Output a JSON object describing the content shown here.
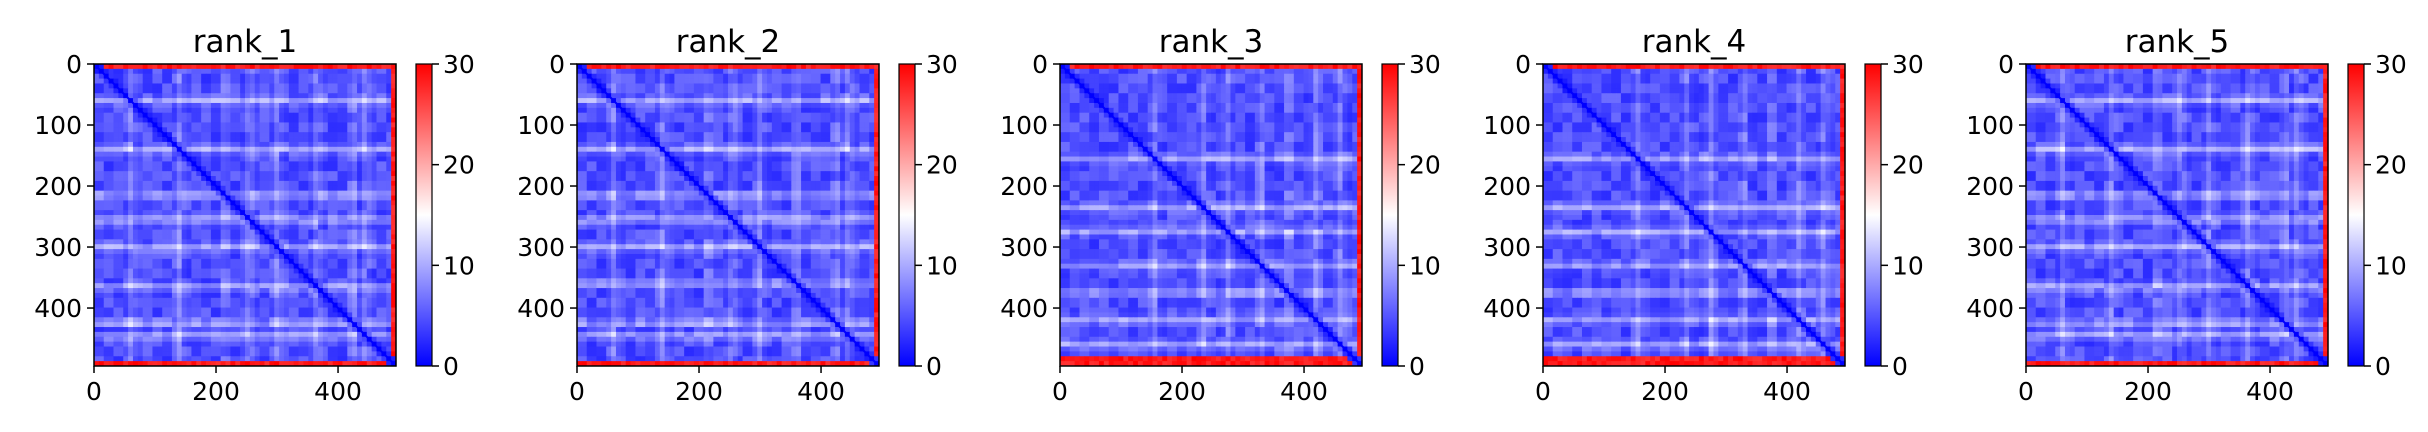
{
  "chart_data": [
    {
      "type": "heatmap",
      "title": "rank_1",
      "matrix_size": 495,
      "x_ticks": [
        0,
        200,
        400
      ],
      "y_ticks": [
        0,
        100,
        200,
        300,
        400
      ],
      "xlim": [
        0,
        495
      ],
      "ylim": [
        495,
        0
      ],
      "colorbar": {
        "range": [
          0,
          30
        ],
        "ticks": [
          0,
          10,
          20,
          30
        ],
        "colormap": "bwr",
        "low_color": "#0000ff",
        "mid_color": "#ffffff",
        "high_color": "#ff0000"
      },
      "pattern": {
        "low_diagonal": true,
        "high_value_edge_rows": [
          0,
          487
        ],
        "high_value_edge_col": 487,
        "bright_bands": [
          60,
          140,
          215,
          255,
          300,
          365,
          425,
          445
        ]
      }
    },
    {
      "type": "heatmap",
      "title": "rank_2",
      "matrix_size": 495,
      "x_ticks": [
        0,
        200,
        400
      ],
      "y_ticks": [
        0,
        100,
        200,
        300,
        400
      ],
      "xlim": [
        0,
        495
      ],
      "ylim": [
        495,
        0
      ],
      "colorbar": {
        "range": [
          0,
          30
        ],
        "ticks": [
          0,
          10,
          20,
          30
        ],
        "colormap": "bwr",
        "low_color": "#0000ff",
        "mid_color": "#ffffff",
        "high_color": "#ff0000"
      },
      "pattern": {
        "low_diagonal": true,
        "high_value_edge_rows": [
          0,
          487
        ],
        "high_value_edge_col": 487,
        "bright_bands": [
          60,
          140,
          215,
          255,
          300,
          360,
          425,
          445
        ]
      }
    },
    {
      "type": "heatmap",
      "title": "rank_3",
      "matrix_size": 495,
      "x_ticks": [
        0,
        200,
        400
      ],
      "y_ticks": [
        0,
        100,
        200,
        300,
        400
      ],
      "xlim": [
        0,
        495
      ],
      "ylim": [
        495,
        0
      ],
      "colorbar": {
        "range": [
          0,
          30
        ],
        "ticks": [
          0,
          10,
          20,
          30
        ],
        "colormap": "bwr",
        "low_color": "#0000ff",
        "mid_color": "#ffffff",
        "high_color": "#ff0000"
      },
      "pattern": {
        "low_diagonal": true,
        "high_value_edge_rows": [
          0,
          480
        ],
        "high_value_edge_col": 487,
        "bright_bands": [
          155,
          235,
          275,
          330,
          375,
          420,
          460
        ]
      }
    },
    {
      "type": "heatmap",
      "title": "rank_4",
      "matrix_size": 495,
      "x_ticks": [
        0,
        200,
        400
      ],
      "y_ticks": [
        0,
        100,
        200,
        300,
        400
      ],
      "xlim": [
        0,
        495
      ],
      "ylim": [
        495,
        0
      ],
      "colorbar": {
        "range": [
          0,
          30
        ],
        "ticks": [
          0,
          10,
          20,
          30
        ],
        "colormap": "bwr",
        "low_color": "#0000ff",
        "mid_color": "#ffffff",
        "high_color": "#ff0000"
      },
      "pattern": {
        "low_diagonal": true,
        "high_value_edge_rows": [
          0,
          480
        ],
        "high_value_edge_col": 487,
        "bright_bands": [
          155,
          235,
          275,
          330,
          375,
          420,
          460
        ]
      }
    },
    {
      "type": "heatmap",
      "title": "rank_5",
      "matrix_size": 495,
      "x_ticks": [
        0,
        200,
        400
      ],
      "y_ticks": [
        0,
        100,
        200,
        300,
        400
      ],
      "xlim": [
        0,
        495
      ],
      "ylim": [
        495,
        0
      ],
      "colorbar": {
        "range": [
          0,
          30
        ],
        "ticks": [
          0,
          10,
          20,
          30
        ],
        "colormap": "bwr",
        "low_color": "#0000ff",
        "mid_color": "#ffffff",
        "high_color": "#ff0000"
      },
      "pattern": {
        "low_diagonal": true,
        "high_value_edge_rows": [
          0,
          487
        ],
        "high_value_edge_col": 487,
        "bright_bands": [
          60,
          140,
          215,
          255,
          300,
          365,
          425,
          445
        ]
      }
    }
  ]
}
